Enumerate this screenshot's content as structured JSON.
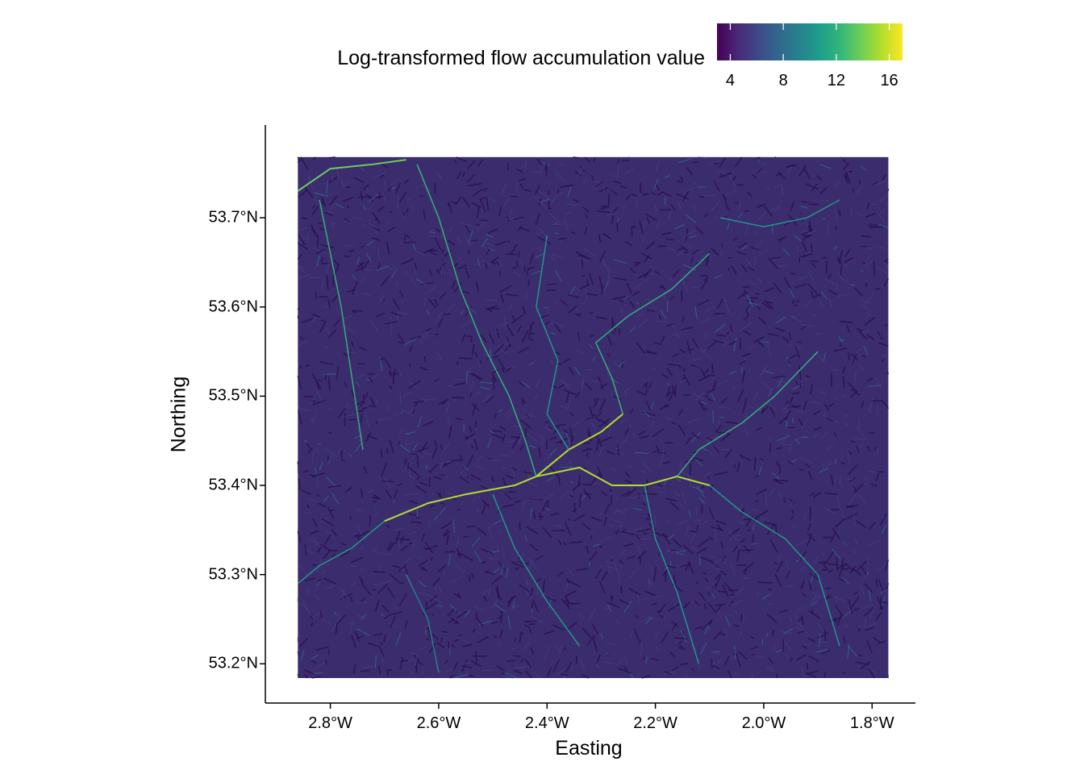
{
  "legend": {
    "title": "Log-transformed flow accumulation value",
    "min": 3,
    "max": 17,
    "ticks": [
      4,
      8,
      12,
      16
    ],
    "colors": [
      "#440154",
      "#482878",
      "#3e4989",
      "#31688e",
      "#26828e",
      "#1f9e89",
      "#35b779",
      "#6ece58",
      "#b5de2b",
      "#fde725"
    ]
  },
  "axes": {
    "x": {
      "title": "Easting",
      "range": [
        -2.92,
        -1.72
      ],
      "ticks": [
        {
          "value": -2.8,
          "label": "2.8°W"
        },
        {
          "value": -2.6,
          "label": "2.6°W"
        },
        {
          "value": -2.4,
          "label": "2.4°W"
        },
        {
          "value": -2.2,
          "label": "2.2°W"
        },
        {
          "value": -2.0,
          "label": "2.0°W"
        },
        {
          "value": -1.8,
          "label": "1.8°W"
        }
      ]
    },
    "y": {
      "title": "Northing",
      "range": [
        53.156,
        53.804
      ],
      "ticks": [
        {
          "value": 53.2,
          "label": "53.2°N"
        },
        {
          "value": 53.3,
          "label": "53.3°N"
        },
        {
          "value": 53.4,
          "label": "53.4°N"
        },
        {
          "value": 53.5,
          "label": "53.5°N"
        },
        {
          "value": 53.6,
          "label": "53.6°N"
        },
        {
          "value": 53.7,
          "label": "53.7°N"
        }
      ]
    }
  },
  "raster_extent": {
    "lon": [
      -2.86,
      -1.77
    ],
    "lat": [
      53.184,
      53.768
    ]
  },
  "background_value": 5
}
